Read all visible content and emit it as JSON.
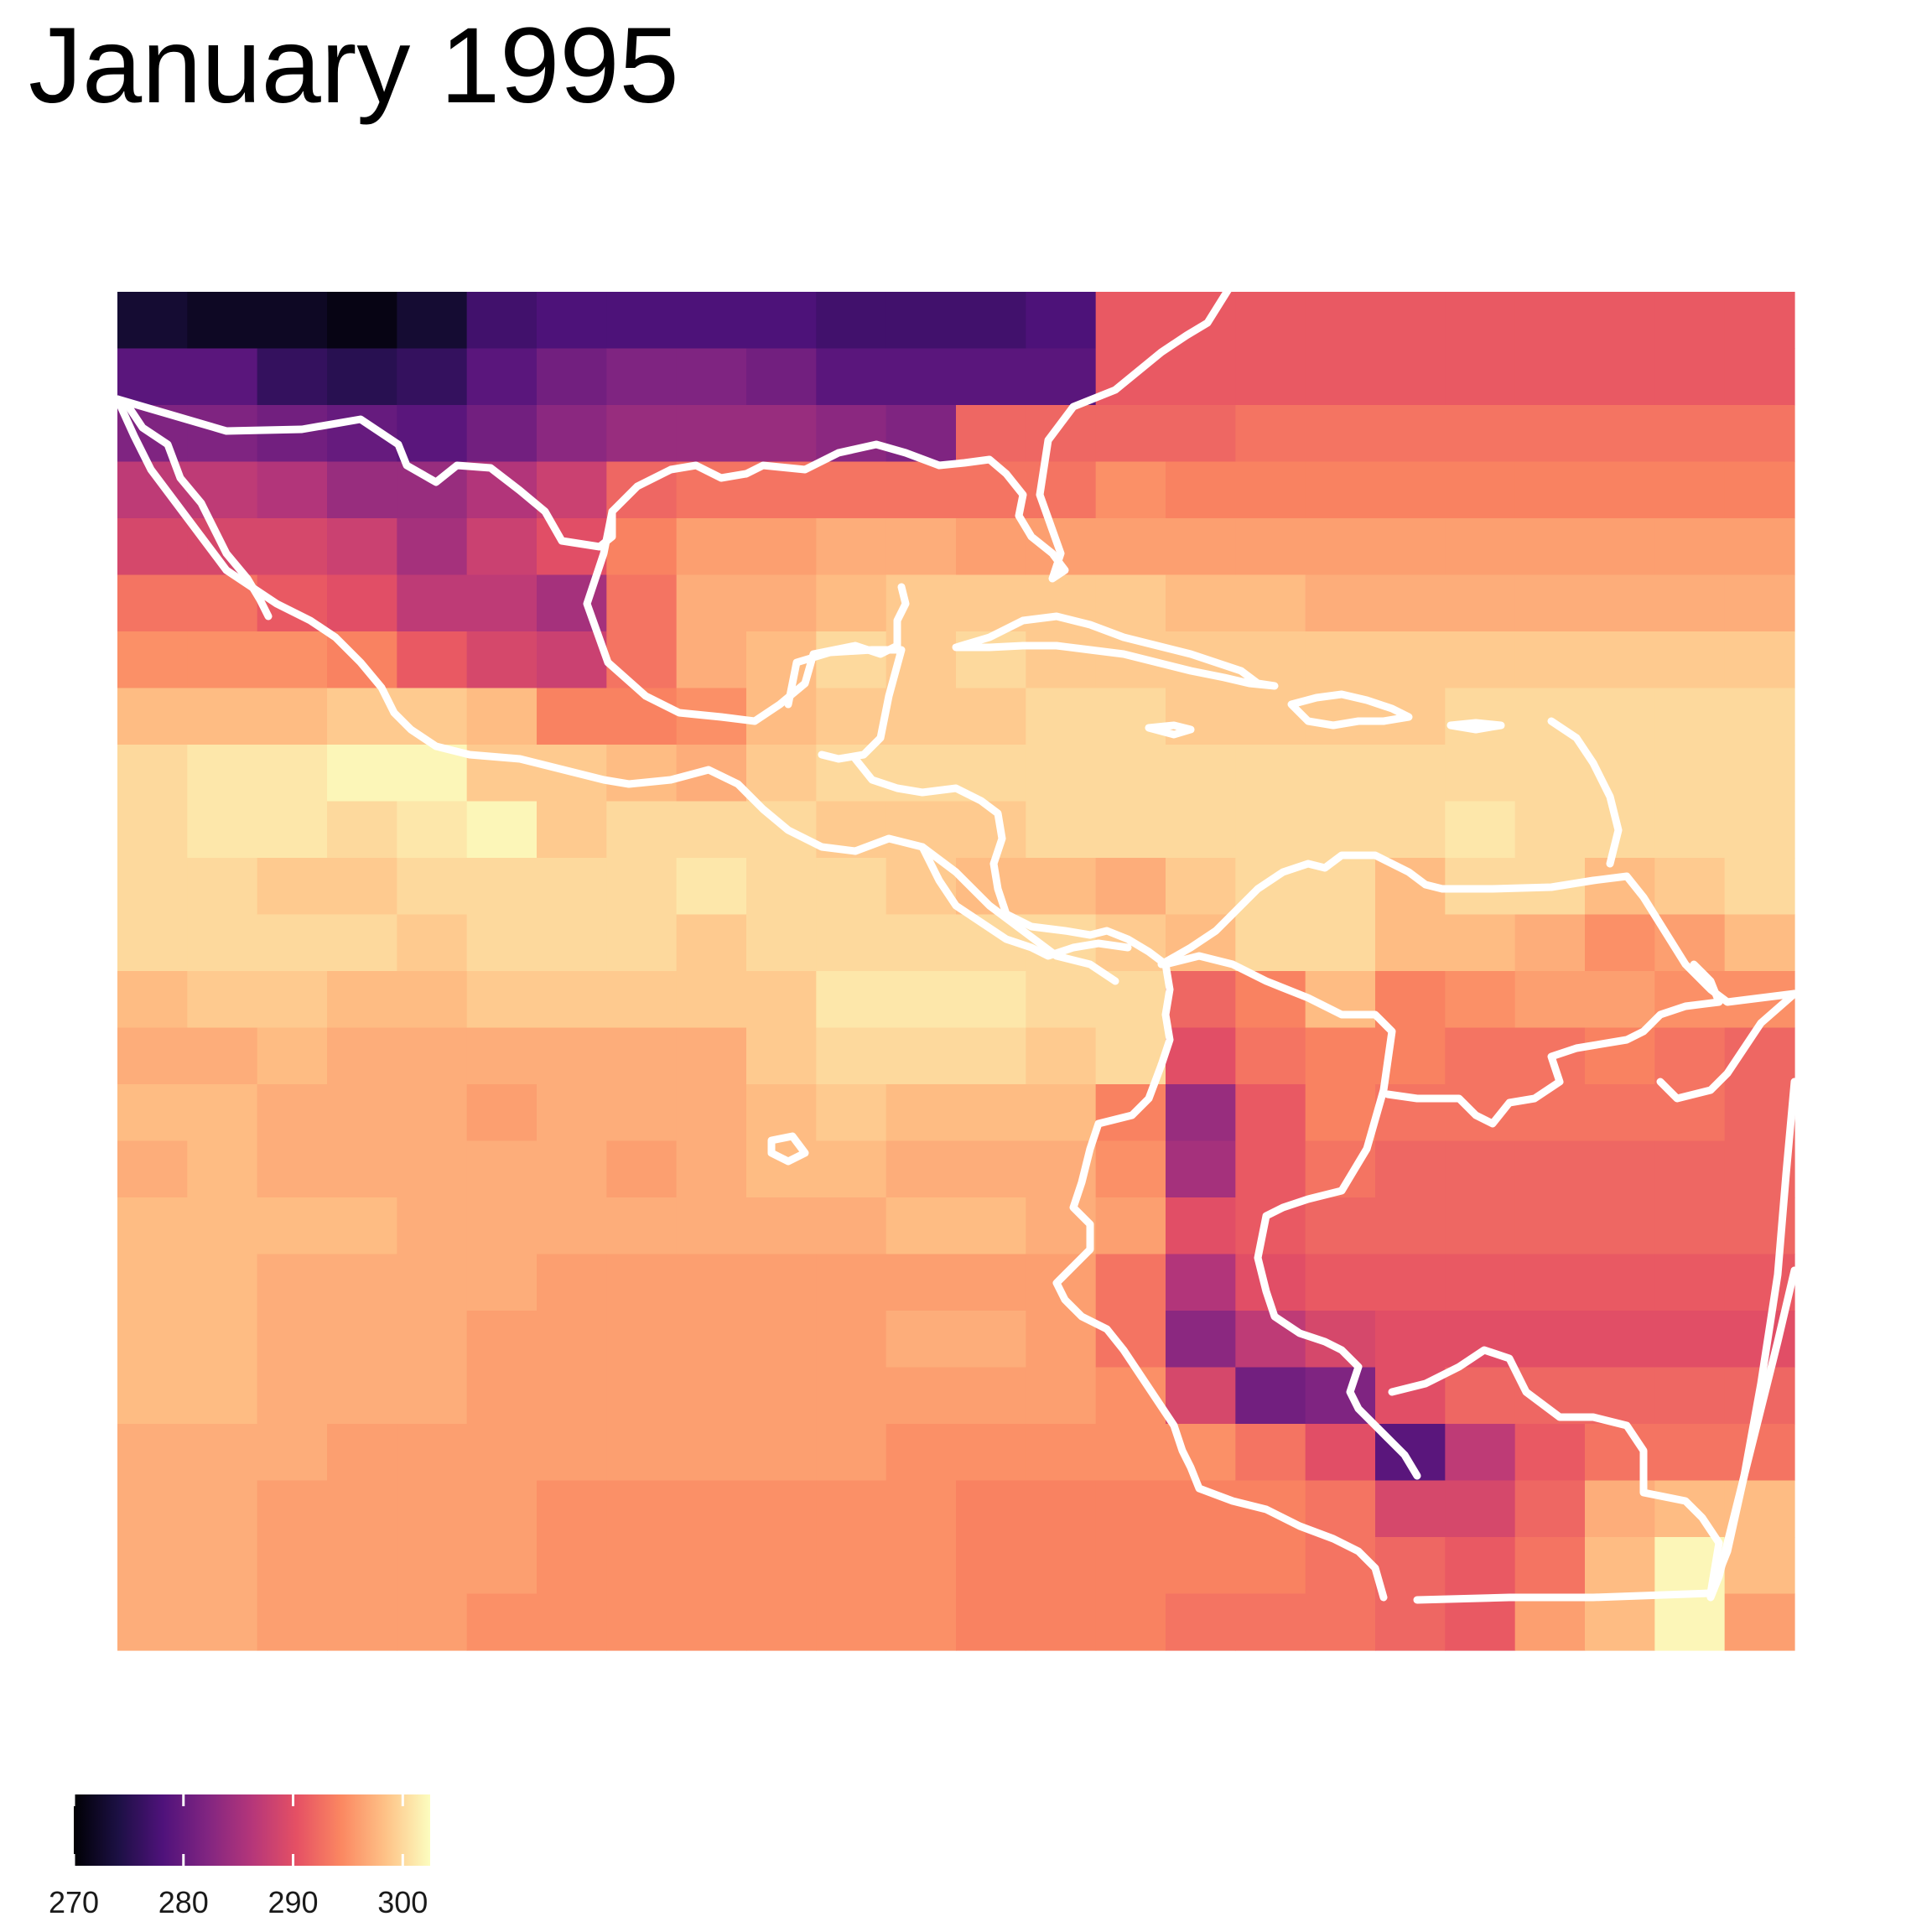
{
  "title": "January 1995",
  "map": {
    "fill_variable_units": "K",
    "color_scale": "magma",
    "coastline_color": "#ffffff",
    "grid": {
      "rows": 24,
      "cols": 24,
      "values": [
        [
          273,
          272,
          272,
          271,
          273,
          277,
          278,
          278,
          278,
          278,
          277,
          277,
          277,
          278,
          291,
          291,
          291,
          291,
          291,
          291,
          291,
          291,
          291,
          291
        ],
        [
          279,
          279,
          276,
          275,
          276,
          279,
          281,
          282,
          282,
          281,
          279,
          279,
          279,
          279,
          291,
          291,
          291,
          291,
          291,
          291,
          291,
          291,
          291,
          291
        ],
        [
          282,
          282,
          281,
          280,
          279,
          281,
          283,
          284,
          284,
          284,
          283,
          282,
          292,
          292,
          292,
          292,
          293,
          293,
          293,
          293,
          293,
          293,
          293,
          293
        ],
        [
          287,
          287,
          286,
          284,
          284,
          286,
          288,
          292,
          293,
          293,
          293,
          293,
          293,
          293,
          295,
          294,
          294,
          294,
          294,
          294,
          294,
          294,
          294,
          294
        ],
        [
          289,
          289,
          289,
          288,
          285,
          288,
          290,
          294,
          296,
          296,
          297,
          297,
          296,
          296,
          296,
          296,
          296,
          296,
          296,
          296,
          296,
          296,
          296,
          296
        ],
        [
          293,
          293,
          291,
          290,
          287,
          287,
          285,
          293,
          297,
          297,
          298,
          299,
          299,
          299,
          299,
          298,
          298,
          297,
          297,
          297,
          297,
          297,
          297,
          297
        ],
        [
          295,
          295,
          295,
          294,
          291,
          289,
          288,
          293,
          297,
          298,
          300,
          299,
          300,
          299,
          299,
          299,
          299,
          299,
          299,
          299,
          299,
          299,
          299,
          299
        ],
        [
          298,
          298,
          298,
          299,
          299,
          298,
          294,
          294,
          295,
          298,
          299,
          299,
          299,
          300,
          300,
          299,
          299,
          299,
          299,
          300,
          300,
          300,
          300,
          300
        ],
        [
          300,
          301,
          301,
          302,
          302,
          299,
          299,
          298,
          297,
          299,
          300,
          300,
          300,
          300,
          300,
          300,
          300,
          300,
          300,
          300,
          300,
          300,
          300,
          300
        ],
        [
          300,
          301,
          301,
          300,
          301,
          302,
          299,
          300,
          300,
          300,
          299,
          299,
          299,
          300,
          300,
          300,
          300,
          300,
          300,
          301,
          300,
          300,
          300,
          300
        ],
        [
          300,
          300,
          299,
          299,
          300,
          300,
          300,
          300,
          301,
          300,
          300,
          299,
          298,
          298,
          297,
          299,
          300,
          300,
          298,
          300,
          300,
          298,
          299,
          300
        ],
        [
          300,
          300,
          300,
          300,
          299,
          300,
          300,
          300,
          299,
          300,
          300,
          300,
          300,
          300,
          299,
          298,
          300,
          300,
          298,
          298,
          297,
          295,
          296,
          298
        ],
        [
          298,
          299,
          299,
          298,
          298,
          299,
          299,
          299,
          299,
          299,
          301,
          301,
          301,
          300,
          300,
          292,
          294,
          298,
          294,
          295,
          296,
          296,
          295,
          295
        ],
        [
          297,
          297,
          298,
          297,
          297,
          297,
          297,
          297,
          297,
          299,
          300,
          300,
          300,
          299,
          300,
          290,
          293,
          294,
          294,
          293,
          293,
          294,
          293,
          292
        ],
        [
          298,
          298,
          297,
          297,
          297,
          296,
          297,
          297,
          297,
          298,
          299,
          298,
          298,
          298,
          294,
          284,
          291,
          294,
          293,
          293,
          293,
          293,
          293,
          292
        ],
        [
          297,
          298,
          297,
          297,
          297,
          297,
          297,
          296,
          297,
          298,
          298,
          297,
          297,
          297,
          295,
          285,
          291,
          293,
          292,
          292,
          292,
          292,
          292,
          292
        ],
        [
          298,
          298,
          298,
          298,
          297,
          297,
          297,
          297,
          297,
          297,
          297,
          298,
          298,
          297,
          296,
          290,
          291,
          292,
          292,
          292,
          292,
          292,
          292,
          292
        ],
        [
          298,
          298,
          297,
          297,
          297,
          297,
          296,
          296,
          296,
          296,
          296,
          296,
          296,
          296,
          293,
          286,
          290,
          291,
          291,
          291,
          291,
          291,
          291,
          291
        ],
        [
          298,
          298,
          297,
          297,
          297,
          296,
          296,
          296,
          296,
          296,
          296,
          297,
          297,
          296,
          293,
          283,
          287,
          289,
          290,
          290,
          290,
          290,
          290,
          290
        ],
        [
          298,
          298,
          297,
          297,
          297,
          296,
          296,
          296,
          296,
          296,
          296,
          296,
          296,
          296,
          295,
          289,
          281,
          282,
          290,
          292,
          292,
          292,
          292,
          292
        ],
        [
          297,
          297,
          297,
          296,
          296,
          296,
          296,
          296,
          296,
          296,
          296,
          295,
          295,
          295,
          295,
          295,
          293,
          290,
          279,
          287,
          291,
          293,
          293,
          293
        ],
        [
          297,
          297,
          296,
          296,
          296,
          296,
          295,
          295,
          295,
          295,
          295,
          295,
          294,
          294,
          294,
          294,
          294,
          293,
          289,
          289,
          292,
          297,
          298,
          298
        ],
        [
          297,
          297,
          296,
          296,
          296,
          296,
          295,
          295,
          295,
          295,
          295,
          295,
          294,
          294,
          294,
          294,
          294,
          293,
          292,
          291,
          293,
          298,
          302,
          298
        ],
        [
          297,
          297,
          296,
          296,
          296,
          295,
          295,
          295,
          295,
          295,
          295,
          295,
          294,
          294,
          294,
          293,
          293,
          293,
          292,
          291,
          296,
          298,
          302,
          296
        ]
      ]
    }
  },
  "legend": {
    "min": 270,
    "max": 302.5,
    "ticks": [
      "270",
      "280",
      "290",
      "300"
    ],
    "tick_values": [
      270,
      280,
      290,
      300
    ],
    "colors": [
      "#000004",
      "#1c1044",
      "#4f127b",
      "#812581",
      "#b5367a",
      "#e55064",
      "#fb8761",
      "#fec287",
      "#fcfdbf"
    ]
  }
}
